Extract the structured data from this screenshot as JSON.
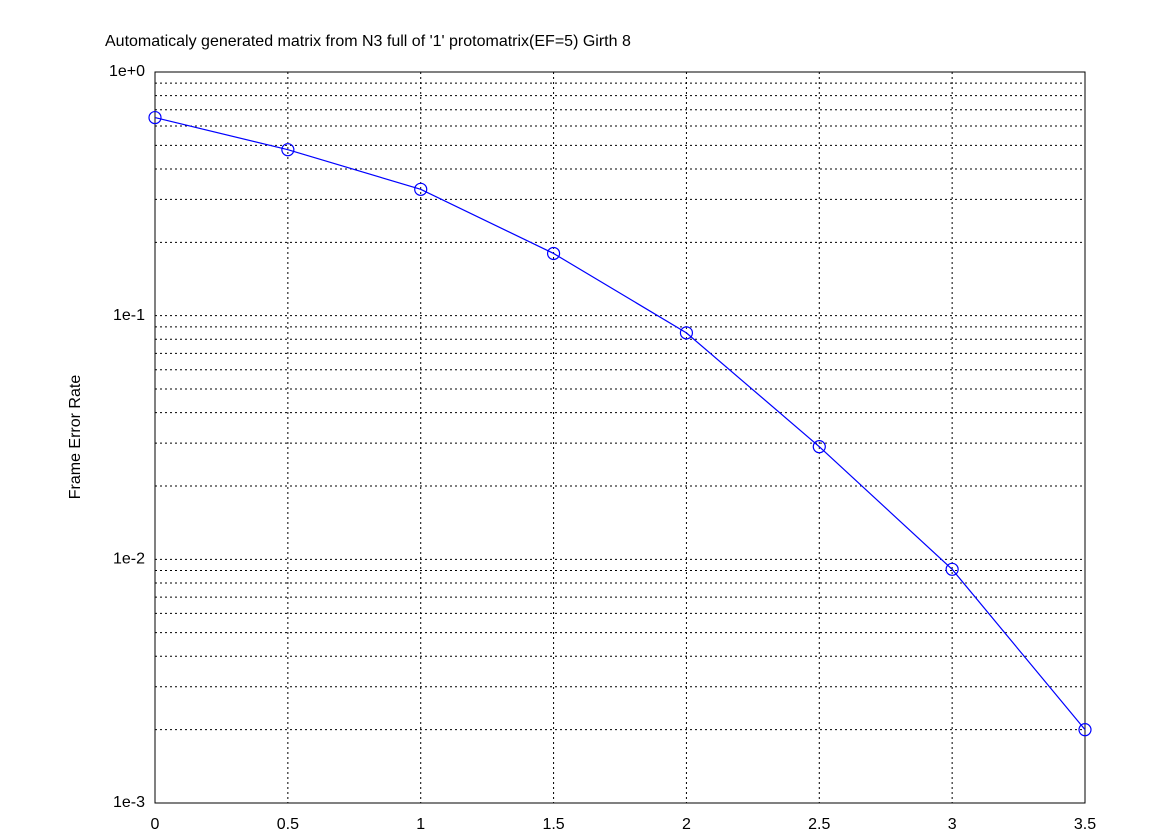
{
  "chart_data": {
    "type": "line",
    "title": "Automaticaly generated matrix from N3 full of '1' protomatrix(EF=5) Girth 8",
    "y_label": "Frame Error Rate",
    "x": [
      0,
      0.5,
      1,
      1.5,
      2,
      2.5,
      3,
      3.5
    ],
    "series": [
      {
        "color": "#0000ff",
        "marker": "circle",
        "values": [
          0.65,
          0.48,
          0.33,
          0.18,
          0.085,
          0.029,
          0.0091,
          0.002
        ]
      }
    ],
    "xlim": [
      0,
      3.5
    ],
    "xticks": [
      0,
      0.5,
      1,
      1.5,
      2,
      2.5,
      3,
      3.5
    ],
    "ylim": [
      0.001,
      1
    ],
    "y_scale": "log",
    "yticks": [
      {
        "value": 0.001,
        "label": "1e-3"
      },
      {
        "value": 0.01,
        "label": "1e-2"
      },
      {
        "value": 0.1,
        "label": "1e-1"
      },
      {
        "value": 1,
        "label": "1e+0"
      }
    ],
    "grid": true,
    "minor_grid": true
  }
}
